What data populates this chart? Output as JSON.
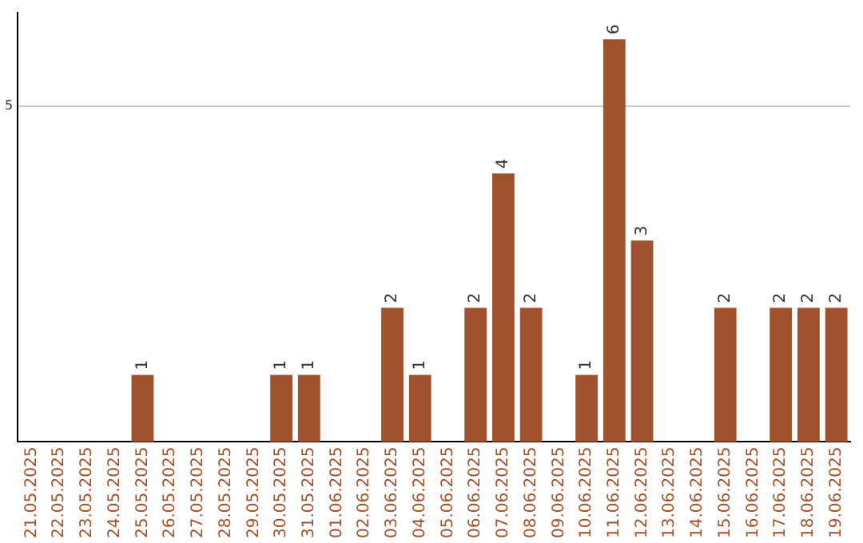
{
  "chart_data": {
    "type": "bar",
    "categories": [
      "21.05.2025",
      "22.05.2025",
      "23.05.2025",
      "24.05.2025",
      "25.05.2025",
      "26.05.2025",
      "27.05.2025",
      "28.05.2025",
      "29.05.2025",
      "30.05.2025",
      "31.05.2025",
      "01.06.2025",
      "02.06.2025",
      "03.06.2025",
      "04.06.2025",
      "05.06.2025",
      "06.06.2025",
      "07.06.2025",
      "08.06.2025",
      "09.06.2025",
      "10.06.2025",
      "11.06.2025",
      "12.06.2025",
      "13.06.2025",
      "14.06.2025",
      "15.06.2025",
      "16.06.2025",
      "17.06.2025",
      "18.06.2025",
      "19.06.2025"
    ],
    "values": [
      0,
      0,
      0,
      0,
      1,
      0,
      0,
      0,
      0,
      1,
      1,
      0,
      0,
      2,
      1,
      0,
      2,
      4,
      2,
      0,
      1,
      6,
      3,
      0,
      0,
      2,
      0,
      2,
      2,
      2
    ],
    "value_labels": [
      null,
      null,
      null,
      null,
      "1",
      null,
      null,
      null,
      null,
      "1",
      "1",
      null,
      null,
      "2",
      "1",
      null,
      "2",
      "4",
      "2",
      null,
      "1",
      "6",
      "3",
      null,
      null,
      "2",
      null,
      "2",
      "2",
      "2"
    ],
    "color": "#a0522d",
    "ylim": [
      0,
      6.4
    ],
    "yticks": [
      5
    ],
    "grid": "y",
    "legend": false
  }
}
